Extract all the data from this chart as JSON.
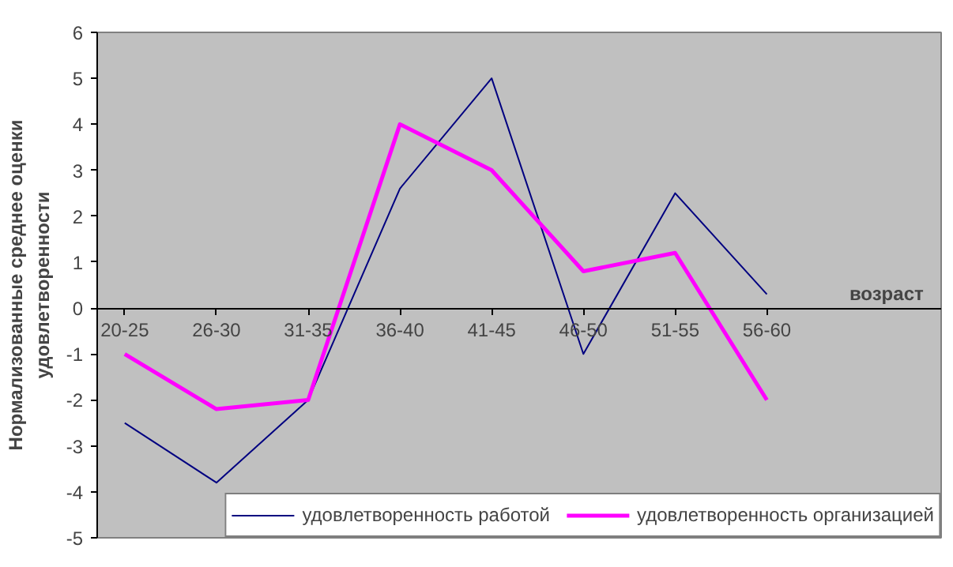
{
  "chart_data": {
    "type": "line",
    "xlabel": "возраст",
    "ylabel": "Нормализованные среднее оценки\nудовлетворенности",
    "categories": [
      "20-25",
      "26-30",
      "31-35",
      "36-40",
      "41-45",
      "46-50",
      "51-55",
      "56-60"
    ],
    "series": [
      {
        "name": "удовлетворенность работой",
        "color": "#000080",
        "values": [
          -2.5,
          -3.8,
          -2.0,
          2.6,
          5.0,
          -1.0,
          2.5,
          0.3
        ]
      },
      {
        "name": "удовлетворенность организацией",
        "color": "#ff00ff",
        "values": [
          -1.0,
          -2.2,
          -2.0,
          4.0,
          3.0,
          0.8,
          1.2,
          -2.0
        ]
      }
    ],
    "ylim": [
      -5,
      6
    ],
    "yticks": [
      -5,
      -4,
      -3,
      -2,
      -1,
      0,
      1,
      2,
      3,
      4,
      5,
      6
    ],
    "grid": false,
    "legend": "bottom right",
    "marker": "none",
    "line_style": "solid"
  }
}
